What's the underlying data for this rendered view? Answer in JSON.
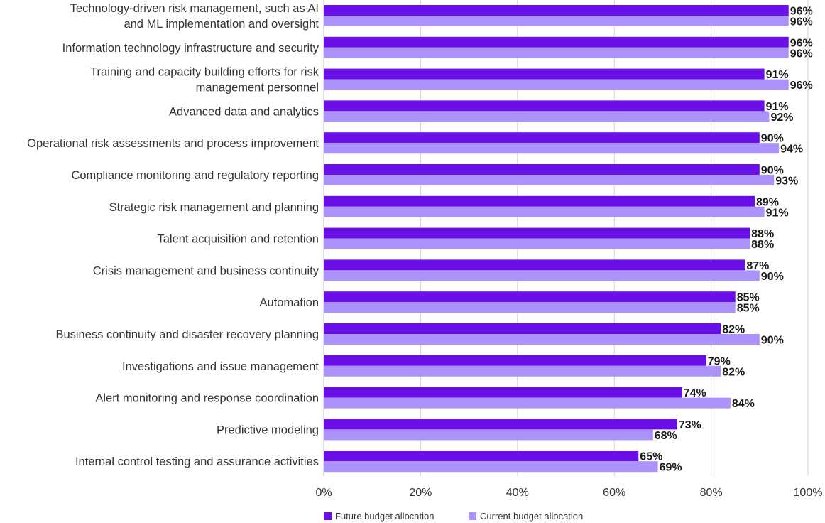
{
  "chart_data": {
    "type": "bar",
    "orientation": "horizontal",
    "categories": [
      [
        "Technology-driven risk management, such as AI",
        "and ML implementation and oversight"
      ],
      [
        "Information technology infrastructure and security"
      ],
      [
        "Training and capacity building efforts for risk",
        "management personnel"
      ],
      [
        "Advanced data and analytics"
      ],
      [
        "Operational risk assessments and process improvement"
      ],
      [
        "Compliance monitoring and regulatory reporting"
      ],
      [
        "Strategic risk management and planning"
      ],
      [
        "Talent acquisition and retention"
      ],
      [
        "Crisis management and business continuity"
      ],
      [
        "Automation"
      ],
      [
        "Business continuity and disaster recovery planning"
      ],
      [
        "Investigations and issue management"
      ],
      [
        "Alert monitoring and response coordination"
      ],
      [
        "Predictive modeling"
      ],
      [
        "Internal control testing and assurance activities"
      ]
    ],
    "series": [
      {
        "name": "Future budget allocation",
        "color": "#6a0fe8",
        "values": [
          96,
          96,
          91,
          91,
          90,
          90,
          89,
          88,
          87,
          85,
          82,
          79,
          74,
          73,
          65
        ]
      },
      {
        "name": "Current budget allocation",
        "color": "#ac93fb",
        "values": [
          96,
          96,
          96,
          92,
          94,
          93,
          91,
          88,
          90,
          85,
          90,
          82,
          84,
          68,
          69
        ]
      }
    ],
    "value_suffix": "%",
    "xlim": [
      0,
      100
    ],
    "xticks": [
      0,
      20,
      40,
      60,
      80,
      100
    ],
    "xtick_labels": [
      "0%",
      "20%",
      "40%",
      "60%",
      "80%",
      "100%"
    ],
    "grid": true,
    "legend_position": "bottom-left"
  }
}
